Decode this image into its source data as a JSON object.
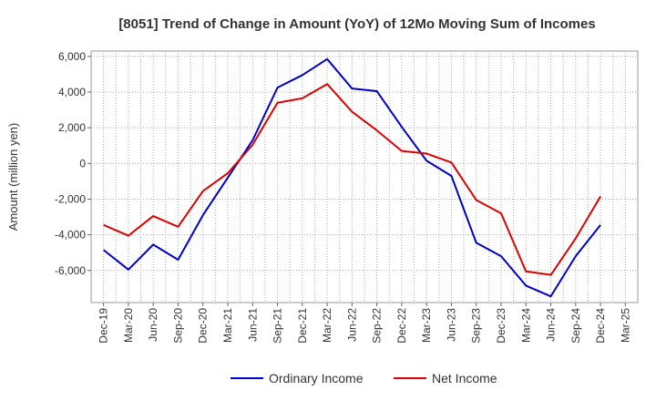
{
  "chart_data": {
    "type": "line",
    "title": "[8051]  Trend of Change in Amount (YoY) of 12Mo Moving Sum of Incomes",
    "xlabel": "",
    "ylabel": "Amount (million yen)",
    "ylim": [
      -7800,
      6300
    ],
    "yticks": [
      6000,
      4000,
      2000,
      0,
      -2000,
      -4000,
      -6000
    ],
    "ytick_labels": [
      "6,000",
      "4,000",
      "2,000",
      "0",
      "-2,000",
      "-4,000",
      "-6,000"
    ],
    "categories": [
      "Dec-19",
      "Mar-20",
      "Jun-20",
      "Sep-20",
      "Dec-20",
      "Mar-21",
      "Jun-21",
      "Sep-21",
      "Dec-21",
      "Mar-22",
      "Jun-22",
      "Sep-22",
      "Dec-22",
      "Mar-23",
      "Jun-23",
      "Sep-23",
      "Dec-23",
      "Mar-24",
      "Jun-24",
      "Sep-24",
      "Dec-24",
      "Mar-25"
    ],
    "grid": true,
    "legend_position": "bottom",
    "series": [
      {
        "name": "Ordinary Income",
        "color": "#0000cc",
        "values": [
          -4850,
          -5950,
          -4550,
          -5400,
          -2900,
          -800,
          1300,
          4250,
          4950,
          5850,
          4200,
          4050,
          2050,
          150,
          -700,
          -4450,
          -5200,
          -6850,
          -7450,
          -5200,
          -3450,
          null
        ]
      },
      {
        "name": "Net Income",
        "color": "#dd0000",
        "values": [
          -3450,
          -4050,
          -2950,
          -3550,
          -1550,
          -550,
          1050,
          3400,
          3650,
          4450,
          2900,
          1850,
          700,
          550,
          50,
          -2050,
          -2800,
          -6050,
          -6250,
          -4200,
          -1850,
          null
        ]
      }
    ]
  }
}
